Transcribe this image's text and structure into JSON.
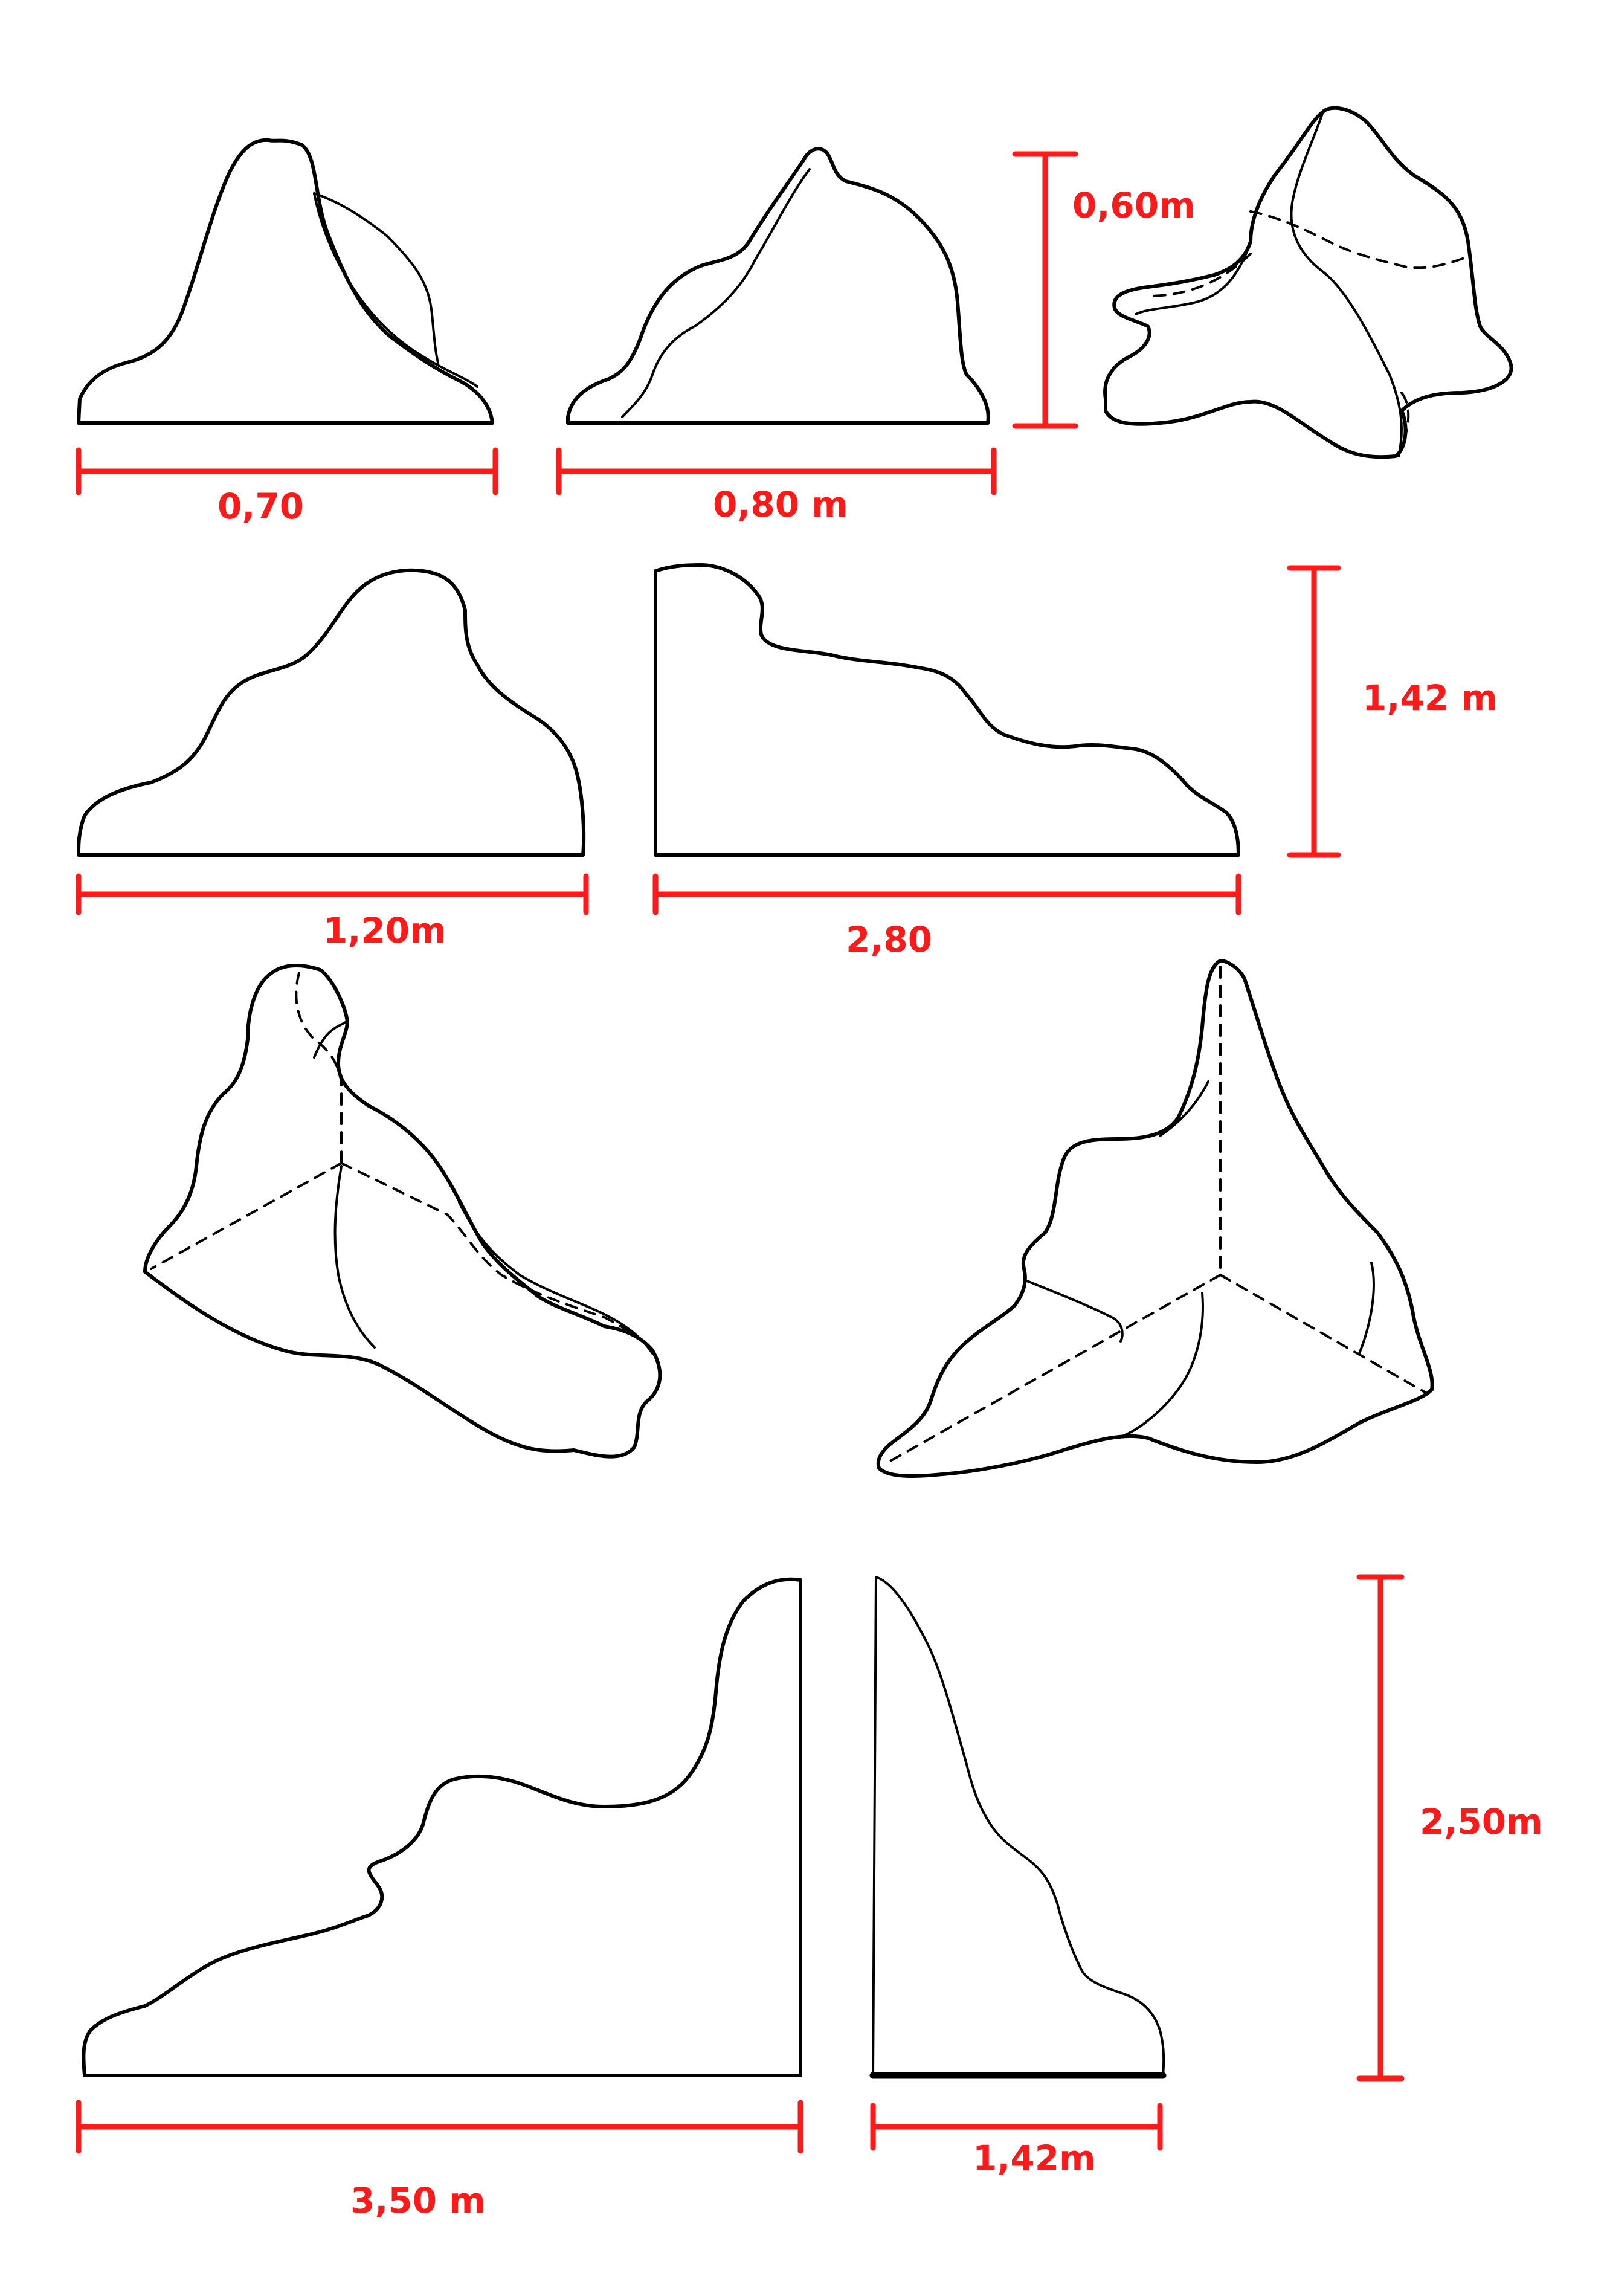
{
  "dimensions": {
    "row1_left_width": "0,70",
    "row1_mid_width": "0,80 m",
    "row1_height": "0,60m",
    "row2_left_width": "1,20m",
    "row2_right_width": "2,80",
    "row2_height": "1,42 m",
    "row4_left_width": "3,50 m",
    "row4_right_width": "1,42m",
    "row4_height": "2,50m"
  },
  "colors": {
    "outline": "#000000",
    "dimension": "#ff1a1a",
    "background": "#ffffff"
  }
}
